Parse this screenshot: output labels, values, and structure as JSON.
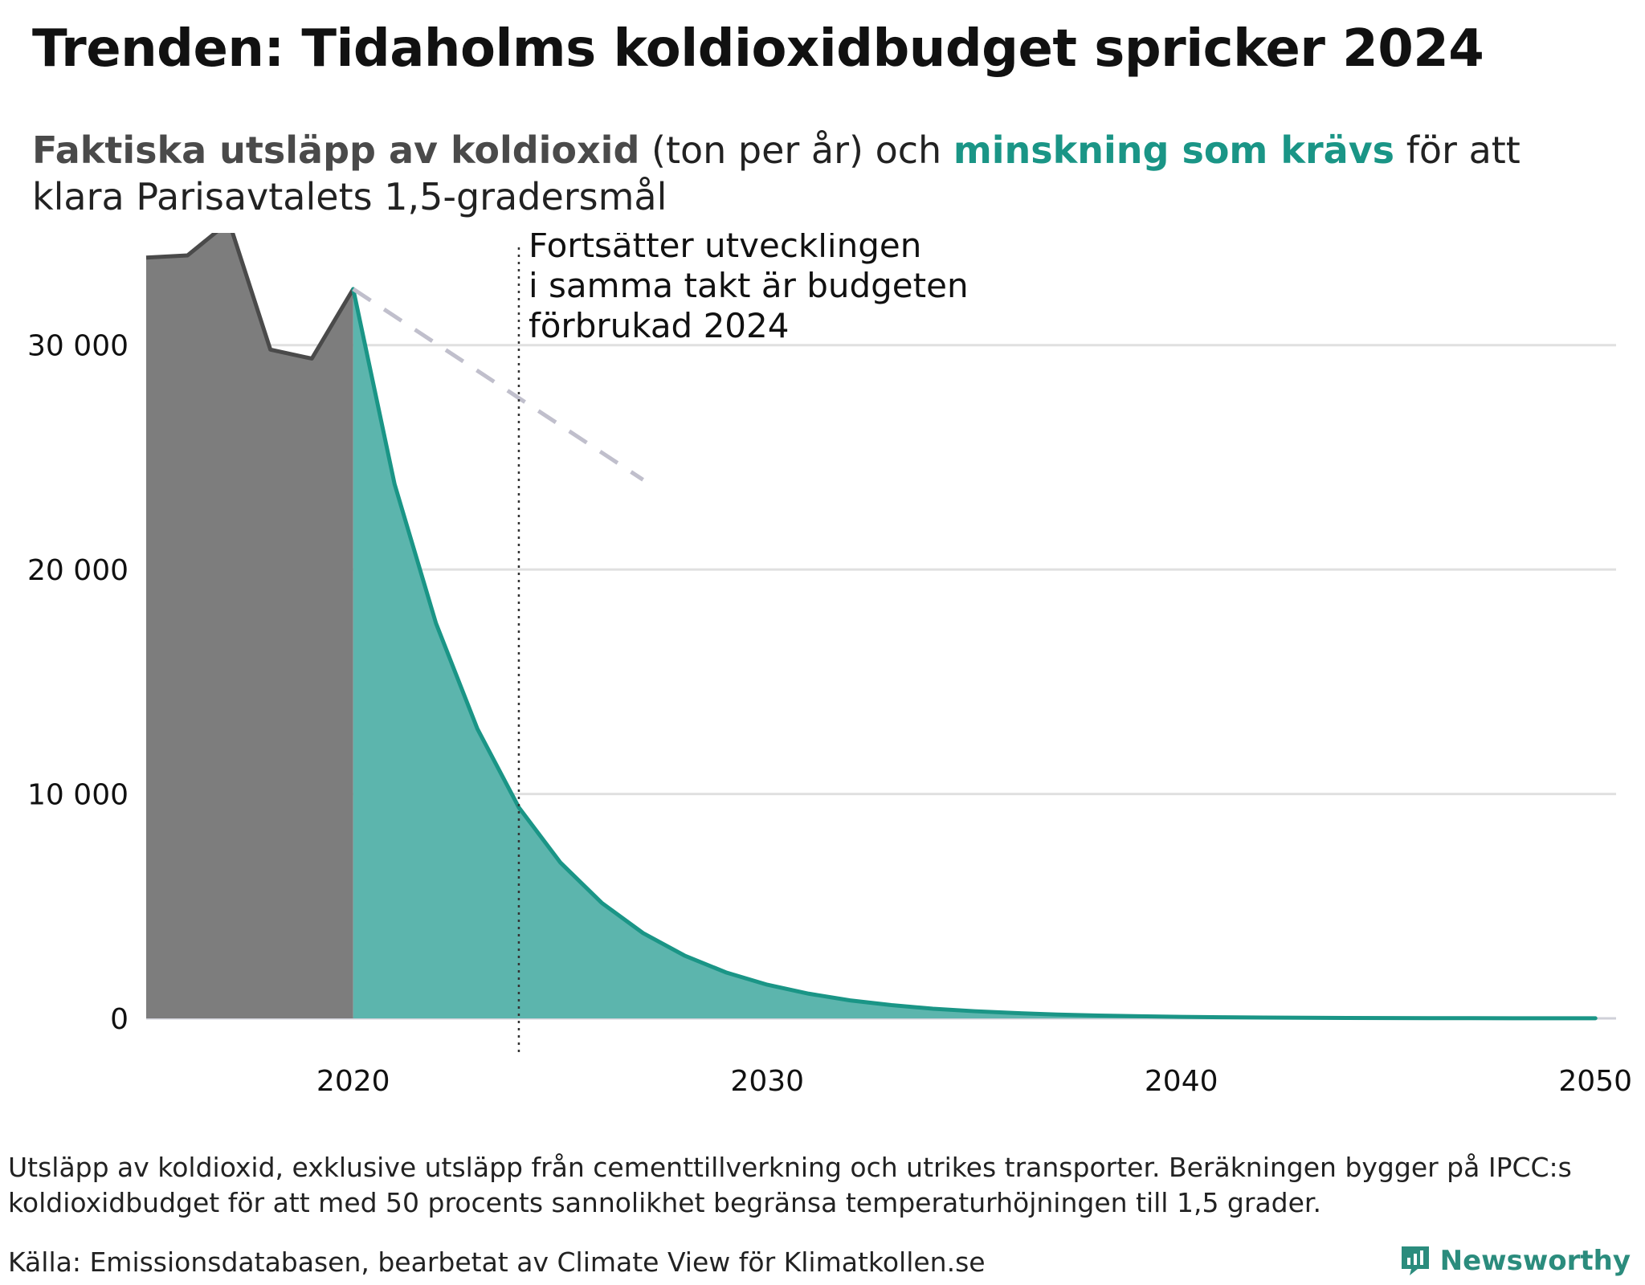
{
  "title": "Trenden: Tidaholms koldioxidbudget spricker 2024",
  "subtitle": {
    "part1": "Faktiska utsläpp av koldioxid",
    "part2": " (ton per år) och ",
    "part3": "minskning som krävs",
    "part4": " för att klara Parisavtalets 1,5-gradersmål"
  },
  "chart_data": {
    "type": "area",
    "xlim": [
      2015,
      2050.5
    ],
    "ylim": [
      0,
      35000
    ],
    "y_ticks": [
      0,
      10000,
      20000,
      30000
    ],
    "y_tick_labels": [
      "0",
      "10 000",
      "20 000",
      "30 000"
    ],
    "x_ticks": [
      2020,
      2030,
      2040,
      2050
    ],
    "x_tick_labels": [
      "2020",
      "2030",
      "2040",
      "2050"
    ],
    "grid": "horizontal",
    "series": [
      {
        "key": "actual",
        "color": "#4a4a4a",
        "fill": "#7d7d7d",
        "x": [
          2015,
          2016,
          2017,
          2018,
          2019,
          2020
        ],
        "y": [
          33900,
          34000,
          35500,
          29800,
          29400,
          32500
        ]
      },
      {
        "key": "required",
        "color": "#1a9586",
        "fill": "#5cb5ad",
        "x": [
          2020,
          2021,
          2022,
          2023,
          2024,
          2025,
          2026,
          2027,
          2028,
          2029,
          2030,
          2031,
          2032,
          2033,
          2034,
          2035,
          2036,
          2037,
          2038,
          2039,
          2040,
          2041,
          2042,
          2043,
          2044,
          2045,
          2046,
          2047,
          2048,
          2049,
          2050
        ],
        "y": [
          32500,
          23800,
          17600,
          12900,
          9400,
          6950,
          5150,
          3800,
          2800,
          2050,
          1500,
          1100,
          800,
          590,
          430,
          320,
          235,
          170,
          125,
          92,
          68,
          50,
          37,
          27,
          20,
          15,
          11,
          8,
          6,
          4,
          3
        ]
      },
      {
        "key": "trend",
        "color": "#c0bfcc",
        "dashed": true,
        "x": [
          2020,
          2027
        ],
        "y": [
          32500,
          24000
        ]
      }
    ],
    "annotation": {
      "x": 2024,
      "text": [
        "Fortsätter utvecklingen",
        "i samma takt är budgeten",
        "förbrukad 2024"
      ]
    }
  },
  "footnote": "Utsläpp av koldioxid, exklusive utsläpp från cementtillverkning och utrikes transporter. Beräkningen bygger på IPCC:s koldioxidbudget för att med 50 procents sannolikhet begränsa temperaturhöjningen till 1,5 grader.",
  "source": "Källa: Emissionsdatabasen, bearbetat av Climate View för Klimatkollen.se",
  "brand": "Newsworthy"
}
